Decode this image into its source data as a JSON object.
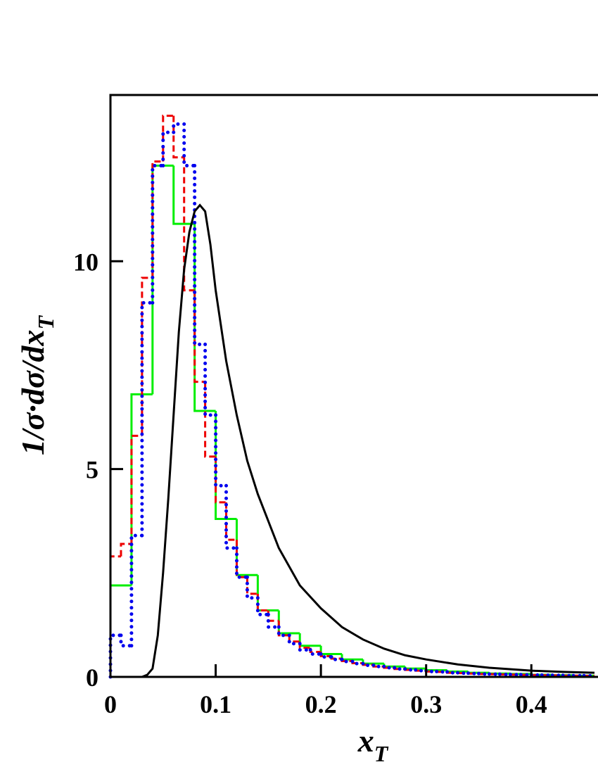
{
  "chart_data": {
    "type": "histogram",
    "xlabel": {
      "text": "x",
      "sub": "T"
    },
    "ylabel": {
      "text": "1/σ·dσ/dx",
      "sub": "T"
    },
    "xlim": [
      0,
      0.46
    ],
    "ylim": [
      0,
      14
    ],
    "xticks": [
      0,
      0.1,
      0.2,
      0.3,
      0.4
    ],
    "yticks": [
      0,
      5,
      10
    ],
    "series": [
      {
        "type": "histogram",
        "color": "#00ee00",
        "style": "solid",
        "bins": [
          0,
          0.02,
          0.04,
          0.06,
          0.08,
          0.1,
          0.12,
          0.14,
          0.16,
          0.18,
          0.2,
          0.22,
          0.24,
          0.26,
          0.28,
          0.3,
          0.32,
          0.34,
          0.36,
          0.38,
          0.4,
          0.42,
          0.44,
          0.46
        ],
        "values": [
          2.2,
          6.8,
          12.3,
          10.9,
          6.4,
          3.8,
          2.45,
          1.6,
          1.05,
          0.75,
          0.55,
          0.42,
          0.32,
          0.25,
          0.2,
          0.16,
          0.13,
          0.1,
          0.08,
          0.07,
          0.05,
          0.04,
          0.03
        ]
      },
      {
        "type": "histogram",
        "color": "#ee0000",
        "style": "dashed",
        "bins": [
          0,
          0.01,
          0.02,
          0.03,
          0.04,
          0.05,
          0.06,
          0.07,
          0.08,
          0.09,
          0.1,
          0.11,
          0.12,
          0.13,
          0.14,
          0.15,
          0.16,
          0.17,
          0.18,
          0.19,
          0.2,
          0.21,
          0.22,
          0.23,
          0.24,
          0.25,
          0.26,
          0.27,
          0.28,
          0.29,
          0.3,
          0.31,
          0.32,
          0.33,
          0.34,
          0.35,
          0.36,
          0.37,
          0.38,
          0.39,
          0.4,
          0.41,
          0.42,
          0.43,
          0.44,
          0.45,
          0.46
        ],
        "values": [
          2.9,
          3.2,
          5.8,
          9.6,
          12.4,
          13.5,
          12.5,
          9.3,
          7.1,
          5.3,
          4.2,
          3.3,
          2.4,
          2.0,
          1.6,
          1.35,
          1.0,
          0.85,
          0.7,
          0.6,
          0.5,
          0.44,
          0.38,
          0.33,
          0.29,
          0.25,
          0.22,
          0.19,
          0.17,
          0.15,
          0.13,
          0.12,
          0.1,
          0.09,
          0.08,
          0.07,
          0.065,
          0.06,
          0.055,
          0.05,
          0.045,
          0.04,
          0.035,
          0.03,
          0.03,
          0.025
        ]
      },
      {
        "type": "histogram",
        "color": "#0000ee",
        "style": "dotted",
        "bins": [
          0,
          0.01,
          0.02,
          0.03,
          0.04,
          0.05,
          0.06,
          0.07,
          0.08,
          0.09,
          0.1,
          0.11,
          0.12,
          0.13,
          0.14,
          0.15,
          0.16,
          0.17,
          0.18,
          0.19,
          0.2,
          0.21,
          0.22,
          0.23,
          0.24,
          0.25,
          0.26,
          0.27,
          0.28,
          0.29,
          0.3,
          0.31,
          0.32,
          0.33,
          0.34,
          0.35,
          0.36,
          0.37,
          0.38,
          0.39,
          0.4,
          0.41,
          0.42,
          0.43,
          0.44,
          0.45,
          0.46
        ],
        "values": [
          1.0,
          0.75,
          3.4,
          9.0,
          12.3,
          13.1,
          13.3,
          12.3,
          8.0,
          6.3,
          4.6,
          3.1,
          2.4,
          1.9,
          1.5,
          1.2,
          1.0,
          0.8,
          0.65,
          0.55,
          0.48,
          0.42,
          0.37,
          0.32,
          0.28,
          0.25,
          0.22,
          0.19,
          0.17,
          0.15,
          0.13,
          0.12,
          0.1,
          0.09,
          0.08,
          0.07,
          0.065,
          0.06,
          0.055,
          0.05,
          0.045,
          0.04,
          0.035,
          0.03,
          0.03,
          0.025
        ]
      },
      {
        "type": "line",
        "color": "#000000",
        "style": "solid",
        "x": [
          0.03,
          0.035,
          0.04,
          0.045,
          0.05,
          0.055,
          0.06,
          0.065,
          0.07,
          0.075,
          0.08,
          0.085,
          0.09,
          0.095,
          0.1,
          0.11,
          0.12,
          0.13,
          0.14,
          0.15,
          0.16,
          0.18,
          0.2,
          0.22,
          0.24,
          0.26,
          0.28,
          0.3,
          0.33,
          0.36,
          0.4,
          0.43,
          0.46
        ],
        "values": [
          0,
          0.05,
          0.2,
          1.0,
          2.5,
          4.3,
          6.3,
          8.3,
          9.8,
          10.7,
          11.2,
          11.35,
          11.2,
          10.4,
          9.3,
          7.6,
          6.3,
          5.2,
          4.4,
          3.75,
          3.1,
          2.2,
          1.65,
          1.2,
          0.9,
          0.68,
          0.52,
          0.42,
          0.3,
          0.22,
          0.15,
          0.12,
          0.1
        ]
      }
    ]
  }
}
